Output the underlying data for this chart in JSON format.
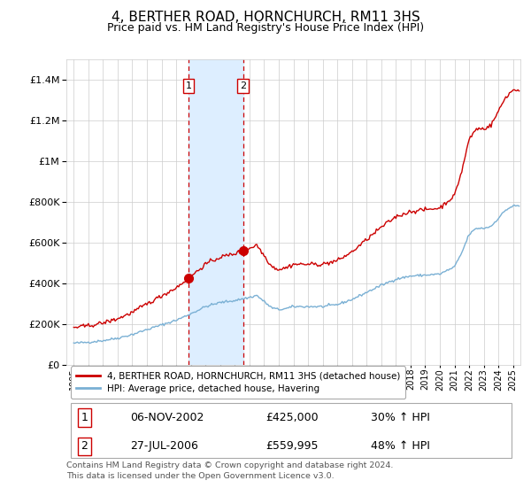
{
  "title": "4, BERTHER ROAD, HORNCHURCH, RM11 3HS",
  "subtitle": "Price paid vs. HM Land Registry's House Price Index (HPI)",
  "title_fontsize": 11,
  "subtitle_fontsize": 9,
  "hpi_color": "#7ab0d4",
  "property_color": "#cc0000",
  "background_color": "#ffffff",
  "grid_color": "#cccccc",
  "highlight_color": "#ddeeff",
  "sale1_date": 2002.85,
  "sale1_price": 425000,
  "sale1_label": "1",
  "sale2_date": 2006.57,
  "sale2_price": 559995,
  "sale2_label": "2",
  "legend_entry1": "4, BERTHER ROAD, HORNCHURCH, RM11 3HS (detached house)",
  "legend_entry2": "HPI: Average price, detached house, Havering",
  "table_row1_num": "1",
  "table_row1_date": "06-NOV-2002",
  "table_row1_price": "£425,000",
  "table_row1_hpi": "30% ↑ HPI",
  "table_row2_num": "2",
  "table_row2_date": "27-JUL-2006",
  "table_row2_price": "£559,995",
  "table_row2_hpi": "48% ↑ HPI",
  "footer": "Contains HM Land Registry data © Crown copyright and database right 2024.\nThis data is licensed under the Open Government Licence v3.0.",
  "ylim_max": 1500000,
  "xlim_min": 1994.5,
  "xlim_max": 2025.5
}
